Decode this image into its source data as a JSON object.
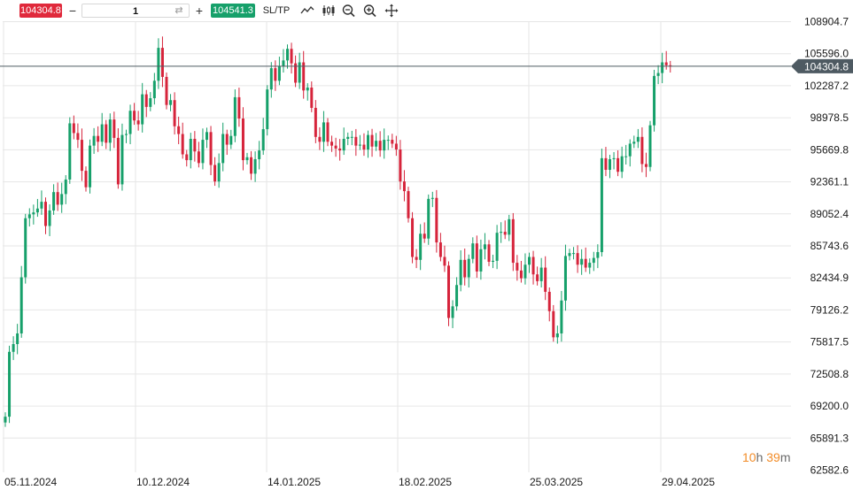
{
  "toolbar": {
    "sell_price": "104304.8",
    "minus": "−",
    "quantity": "1",
    "swap": "⇄",
    "plus": "+",
    "buy_price": "104541.3",
    "sltp": "SL/TP",
    "icons": [
      "line-chart-icon",
      "candlestick-icon",
      "zoom-out-icon",
      "zoom-in-icon",
      "pan-icon"
    ]
  },
  "timer": {
    "h": "10",
    "h_unit": "h",
    "m": "39",
    "m_unit": "m"
  },
  "colors": {
    "up": "#16a06a",
    "down": "#d6243b",
    "grid": "#e6e6e6",
    "axis_text": "#1a1a1a",
    "price_line": "#4e5a62",
    "price_tag": "#4e5a62"
  },
  "chart_data": {
    "type": "candlestick",
    "current_price": 104304.8,
    "current_price_label": "104304.8",
    "y_ticks": [
      "108904.7",
      "105596.0",
      "102287.2",
      "98978.5",
      "95669.8",
      "92361.1",
      "89052.4",
      "85743.6",
      "82434.9",
      "79126.2",
      "75817.5",
      "72508.8",
      "69200.0",
      "65891.3",
      "62582.6"
    ],
    "y_min": 62582.6,
    "y_max": 108904.7,
    "x_ticks": [
      "05.11.2024",
      "10.12.2024",
      "14.01.2025",
      "18.02.2025",
      "25.03.2025",
      "29.04.2025"
    ],
    "closes": [
      68100,
      74800,
      75600,
      76700,
      82500,
      88600,
      89000,
      89200,
      89600,
      90300,
      87800,
      89400,
      91300,
      90000,
      91100,
      92600,
      98400,
      97400,
      96700,
      93500,
      91800,
      96100,
      97100,
      96500,
      98300,
      96400,
      98800,
      96900,
      92100,
      97200,
      97300,
      99700,
      98700,
      98300,
      101400,
      100100,
      101000,
      102800,
      106200,
      103200,
      100300,
      100800,
      98100,
      97300,
      95200,
      94600,
      96800,
      95500,
      94300,
      96700,
      97500,
      94100,
      92400,
      94300,
      97300,
      96200,
      97100,
      101100,
      98900,
      94600,
      94900,
      93200,
      94700,
      95600,
      97800,
      101900,
      104100,
      102800,
      104300,
      104900,
      106100,
      104600,
      102600,
      104700,
      101800,
      102100,
      100000,
      97000,
      96500,
      98500,
      96500,
      96100,
      95800,
      95600,
      96800,
      97000,
      97000,
      96100,
      96200,
      95700,
      97200,
      96000,
      96600,
      95600,
      96700,
      96700,
      96300,
      95700,
      92400,
      91400,
      88600,
      84600,
      84300,
      87000,
      86500,
      90600,
      90700,
      86100,
      84600,
      83700,
      78300,
      79500,
      81700,
      84300,
      82500,
      84400,
      86000,
      83100,
      85400,
      85900,
      84100,
      84200,
      87100,
      87200,
      86900,
      88500,
      84000,
      83200,
      82400,
      83800,
      84600,
      82800,
      82100,
      83500,
      81000,
      79000,
      76300,
      76700,
      80100,
      84700,
      85000,
      85000,
      83800,
      84400,
      83500,
      84000,
      84500,
      85100,
      94800,
      93600,
      94700,
      94800,
      93400,
      95000,
      95000,
      96300,
      96500,
      97000,
      94200,
      93900,
      98200,
      103300,
      103600,
      104700,
      104400,
      104300
    ]
  }
}
